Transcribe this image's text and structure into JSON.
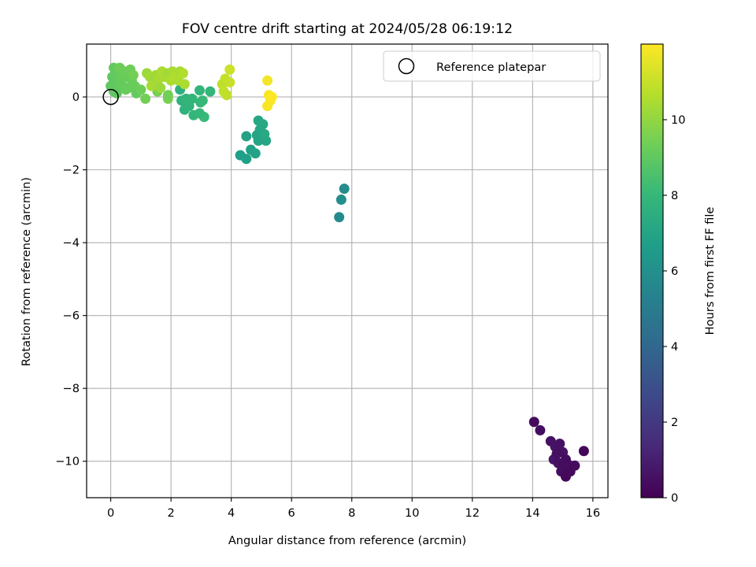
{
  "chart_data": {
    "type": "scatter",
    "title": "FOV centre drift starting at 2024/05/28 06:19:12",
    "xlabel": "Angular distance from reference (arcmin)",
    "ylabel": "Rotation from reference (arcmin)",
    "xlim": [
      -0.8,
      16.5
    ],
    "ylim": [
      -11.0,
      1.45
    ],
    "xticks": [
      0,
      2,
      4,
      6,
      8,
      10,
      12,
      14,
      16
    ],
    "xtick_labels": [
      "0",
      "2",
      "4",
      "6",
      "8",
      "10",
      "12",
      "14",
      "16"
    ],
    "yticks": [
      0,
      -2,
      -4,
      -6,
      -8,
      -10
    ],
    "ytick_labels": [
      "0",
      "−2",
      "−4",
      "−6",
      "−8",
      "−10"
    ],
    "grid": true,
    "legend": {
      "position": "top-right",
      "entries": [
        {
          "label": "Reference platepar",
          "marker": "open-circle"
        }
      ]
    },
    "reference_point": {
      "x": 0,
      "y": 0
    },
    "colorbar": {
      "label": "Hours from first FF file",
      "colormap": "viridis",
      "range": [
        0,
        12
      ],
      "ticks": [
        0,
        2,
        4,
        6,
        8,
        10
      ],
      "tick_labels": [
        "0",
        "2",
        "4",
        "6",
        "8",
        "10"
      ]
    },
    "points": [
      {
        "x": 14.05,
        "y": -8.92,
        "c": 0.3
      },
      {
        "x": 14.25,
        "y": -9.15,
        "c": 0.4
      },
      {
        "x": 14.6,
        "y": -9.45,
        "c": 0.5
      },
      {
        "x": 14.75,
        "y": -9.6,
        "c": 0.6
      },
      {
        "x": 14.9,
        "y": -9.52,
        "c": 0.55
      },
      {
        "x": 14.7,
        "y": -9.95,
        "c": 0.7
      },
      {
        "x": 15.0,
        "y": -9.75,
        "c": 0.6
      },
      {
        "x": 14.85,
        "y": -10.05,
        "c": 0.5
      },
      {
        "x": 15.1,
        "y": -9.95,
        "c": 0.45
      },
      {
        "x": 14.95,
        "y": -10.28,
        "c": 0.4
      },
      {
        "x": 15.2,
        "y": -10.1,
        "c": 0.35
      },
      {
        "x": 15.25,
        "y": -10.28,
        "c": 0.3
      },
      {
        "x": 15.1,
        "y": -10.42,
        "c": 0.25
      },
      {
        "x": 15.4,
        "y": -10.12,
        "c": 0.3
      },
      {
        "x": 15.7,
        "y": -9.72,
        "c": 0.2
      },
      {
        "x": 14.8,
        "y": -9.8,
        "c": 0.5
      },
      {
        "x": 15.05,
        "y": -10.1,
        "c": 0.4
      },
      {
        "x": 7.75,
        "y": -2.52,
        "c": 5.8
      },
      {
        "x": 7.65,
        "y": -2.82,
        "c": 5.9
      },
      {
        "x": 7.58,
        "y": -3.3,
        "c": 5.7
      },
      {
        "x": 4.3,
        "y": -1.6,
        "c": 6.7
      },
      {
        "x": 4.5,
        "y": -1.7,
        "c": 6.8
      },
      {
        "x": 4.5,
        "y": -1.08,
        "c": 6.9
      },
      {
        "x": 4.65,
        "y": -1.45,
        "c": 6.85
      },
      {
        "x": 4.8,
        "y": -1.55,
        "c": 6.9
      },
      {
        "x": 4.9,
        "y": -0.65,
        "c": 7.1
      },
      {
        "x": 5.05,
        "y": -0.75,
        "c": 7.2
      },
      {
        "x": 4.95,
        "y": -0.9,
        "c": 7.15
      },
      {
        "x": 4.85,
        "y": -1.05,
        "c": 7.0
      },
      {
        "x": 5.0,
        "y": -1.15,
        "c": 7.05
      },
      {
        "x": 5.15,
        "y": -1.2,
        "c": 7.1
      },
      {
        "x": 4.9,
        "y": -1.2,
        "c": 7.0
      },
      {
        "x": 5.1,
        "y": -1.02,
        "c": 7.2
      },
      {
        "x": 2.3,
        "y": 0.2,
        "c": 7.6
      },
      {
        "x": 2.35,
        "y": -0.1,
        "c": 7.7
      },
      {
        "x": 2.45,
        "y": -0.35,
        "c": 7.75
      },
      {
        "x": 2.6,
        "y": -0.25,
        "c": 7.8
      },
      {
        "x": 2.5,
        "y": -0.05,
        "c": 7.85
      },
      {
        "x": 2.7,
        "y": -0.05,
        "c": 7.9
      },
      {
        "x": 2.75,
        "y": -0.5,
        "c": 7.95
      },
      {
        "x": 2.95,
        "y": 0.18,
        "c": 7.9
      },
      {
        "x": 2.98,
        "y": -0.15,
        "c": 8.0
      },
      {
        "x": 3.05,
        "y": -0.1,
        "c": 8.05
      },
      {
        "x": 3.1,
        "y": -0.55,
        "c": 8.1
      },
      {
        "x": 2.95,
        "y": -0.45,
        "c": 8.0
      },
      {
        "x": 3.3,
        "y": 0.15,
        "c": 7.9
      },
      {
        "x": 0.05,
        "y": 0.55,
        "c": 9.0
      },
      {
        "x": 0.1,
        "y": 0.8,
        "c": 9.1
      },
      {
        "x": 0.15,
        "y": 0.4,
        "c": 9.0
      },
      {
        "x": 0.2,
        "y": 0.2,
        "c": 9.2
      },
      {
        "x": 0.25,
        "y": 0.65,
        "c": 9.1
      },
      {
        "x": 0.3,
        "y": 0.8,
        "c": 9.3
      },
      {
        "x": 0.35,
        "y": 0.5,
        "c": 9.2
      },
      {
        "x": 0.4,
        "y": 0.3,
        "c": 9.1
      },
      {
        "x": 0.45,
        "y": 0.7,
        "c": 9.3
      },
      {
        "x": 0.1,
        "y": 0.15,
        "c": 9.0
      },
      {
        "x": 0.55,
        "y": 0.55,
        "c": 9.2
      },
      {
        "x": 0.6,
        "y": 0.25,
        "c": 9.1
      },
      {
        "x": 0.65,
        "y": 0.75,
        "c": 9.3
      },
      {
        "x": 0.7,
        "y": 0.45,
        "c": 9.2
      },
      {
        "x": 0.75,
        "y": 0.6,
        "c": 9.4
      },
      {
        "x": 0.8,
        "y": 0.3,
        "c": 9.2
      },
      {
        "x": 0.85,
        "y": 0.1,
        "c": 9.1
      },
      {
        "x": 0.2,
        "y": 0.1,
        "c": 9.0
      },
      {
        "x": 0.0,
        "y": 0.3,
        "c": 9.0
      },
      {
        "x": 0.5,
        "y": 0.2,
        "c": 9.2
      },
      {
        "x": 1.0,
        "y": 0.2,
        "c": 9.3
      },
      {
        "x": 1.15,
        "y": -0.05,
        "c": 9.4
      },
      {
        "x": 1.9,
        "y": -0.05,
        "c": 9.5
      },
      {
        "x": 1.9,
        "y": 0.05,
        "c": 9.4
      },
      {
        "x": 1.55,
        "y": 0.15,
        "c": 9.5
      },
      {
        "x": 1.2,
        "y": 0.65,
        "c": 10.2
      },
      {
        "x": 1.3,
        "y": 0.55,
        "c": 10.3
      },
      {
        "x": 1.4,
        "y": 0.4,
        "c": 10.2
      },
      {
        "x": 1.35,
        "y": 0.3,
        "c": 10.4
      },
      {
        "x": 1.5,
        "y": 0.6,
        "c": 10.3
      },
      {
        "x": 1.6,
        "y": 0.5,
        "c": 10.4
      },
      {
        "x": 1.65,
        "y": 0.25,
        "c": 10.2
      },
      {
        "x": 1.7,
        "y": 0.7,
        "c": 10.5
      },
      {
        "x": 1.8,
        "y": 0.55,
        "c": 10.4
      },
      {
        "x": 1.9,
        "y": 0.65,
        "c": 10.3
      },
      {
        "x": 2.0,
        "y": 0.45,
        "c": 10.5
      },
      {
        "x": 2.05,
        "y": 0.7,
        "c": 10.4
      },
      {
        "x": 2.15,
        "y": 0.55,
        "c": 10.6
      },
      {
        "x": 2.25,
        "y": 0.45,
        "c": 10.5
      },
      {
        "x": 2.3,
        "y": 0.7,
        "c": 10.4
      },
      {
        "x": 2.4,
        "y": 0.65,
        "c": 10.6
      },
      {
        "x": 2.45,
        "y": 0.35,
        "c": 10.5
      },
      {
        "x": 3.7,
        "y": 0.35,
        "c": 10.8
      },
      {
        "x": 3.8,
        "y": 0.5,
        "c": 10.9
      },
      {
        "x": 3.75,
        "y": 0.15,
        "c": 10.9
      },
      {
        "x": 3.85,
        "y": 0.05,
        "c": 10.85
      },
      {
        "x": 3.95,
        "y": 0.4,
        "c": 11.0
      },
      {
        "x": 3.95,
        "y": 0.75,
        "c": 11.1
      },
      {
        "x": 5.2,
        "y": 0.45,
        "c": 11.8
      },
      {
        "x": 5.25,
        "y": 0.05,
        "c": 11.9
      },
      {
        "x": 5.3,
        "y": -0.1,
        "c": 11.95
      },
      {
        "x": 5.2,
        "y": -0.25,
        "c": 11.9
      },
      {
        "x": 5.35,
        "y": 0.0,
        "c": 12.0
      }
    ]
  }
}
